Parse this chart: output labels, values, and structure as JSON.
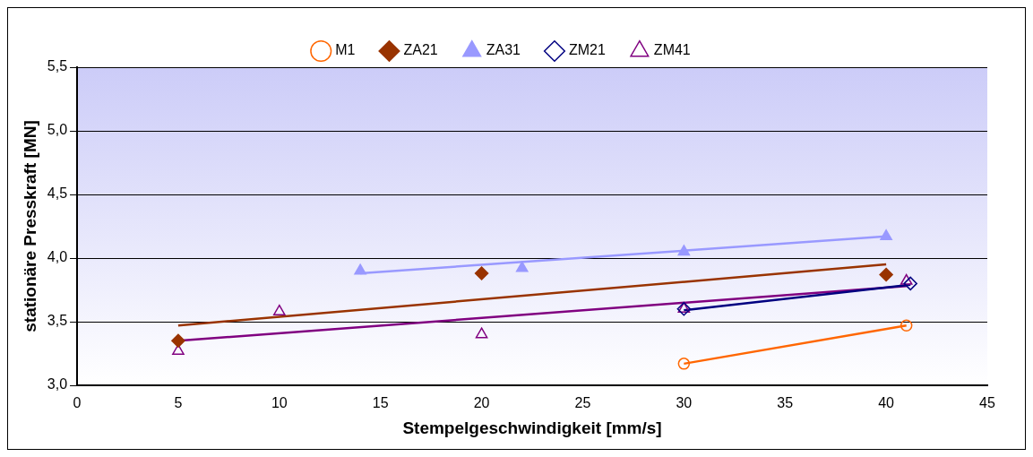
{
  "chart_data": {
    "type": "scatter",
    "xlabel": "Stempelgeschwindigkeit [mm/s]",
    "ylabel": "stationäre Presskraft [MN]",
    "xlim": [
      0,
      45
    ],
    "xticks": [
      0,
      5,
      10,
      15,
      20,
      25,
      30,
      35,
      40,
      45
    ],
    "ylim": [
      3.0,
      5.5
    ],
    "yticks": [
      {
        "value": 3.0,
        "label": "3,0"
      },
      {
        "value": 3.5,
        "label": "3,5"
      },
      {
        "value": 4.0,
        "label": "4,0"
      },
      {
        "value": 4.5,
        "label": "4,5"
      },
      {
        "value": 5.0,
        "label": "5,0"
      },
      {
        "value": 5.5,
        "label": "5,5"
      }
    ],
    "grid": "y",
    "legend": "top",
    "series": [
      {
        "name": "M1",
        "marker": "circle",
        "color": "#ff6600",
        "x": [
          30,
          41
        ],
        "values": [
          3.17,
          3.47
        ]
      },
      {
        "name": "ZA21",
        "marker": "diamond",
        "color": "#993300",
        "x": [
          5,
          20,
          40
        ],
        "values": [
          3.35,
          3.88,
          3.87
        ]
      },
      {
        "name": "ZA31",
        "marker": "triangle",
        "color": "#9999ff",
        "x": [
          14,
          22,
          30,
          40
        ],
        "values": [
          3.9,
          3.92,
          4.05,
          4.17
        ]
      },
      {
        "name": "ZM21",
        "marker": "diamond",
        "color": "#000080",
        "x": [
          30,
          41.2
        ],
        "values": [
          3.6,
          3.8
        ]
      },
      {
        "name": "ZM41",
        "marker": "triangle",
        "color": "#800080",
        "x": [
          5,
          10,
          20,
          30,
          41
        ],
        "values": [
          3.27,
          3.58,
          3.4,
          3.6,
          3.82
        ]
      },
      {
        "type": "line",
        "marker": "none",
        "color": "#ff6600",
        "x": [
          30,
          41
        ],
        "values": [
          3.17,
          3.47
        ]
      },
      {
        "type": "line",
        "marker": "none",
        "color": "#993300",
        "x": [
          5,
          40
        ],
        "values": [
          3.47,
          3.95
        ]
      },
      {
        "type": "line",
        "marker": "none",
        "color": "#9999ff",
        "x": [
          14,
          40
        ],
        "values": [
          3.88,
          4.17
        ]
      },
      {
        "type": "line",
        "marker": "none",
        "color": "#000080",
        "x": [
          30,
          41.2
        ],
        "values": [
          3.59,
          3.79
        ]
      },
      {
        "type": "line",
        "marker": "none",
        "color": "#800080",
        "x": [
          5,
          41
        ],
        "values": [
          3.35,
          3.78
        ]
      }
    ]
  }
}
